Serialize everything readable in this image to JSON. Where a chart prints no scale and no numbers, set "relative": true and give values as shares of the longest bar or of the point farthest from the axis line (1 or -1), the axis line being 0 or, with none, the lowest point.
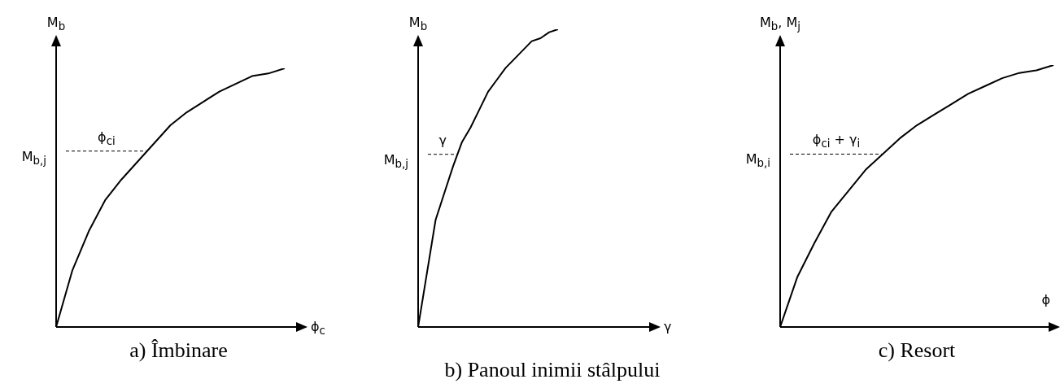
{
  "chart_data": [
    {
      "type": "line",
      "title": "a) Îmbinare",
      "xlabel": "ϕ$_{c}$",
      "ylabel": "M$_{b}$",
      "relative": true,
      "categories": [
        null,
        null,
        null,
        null,
        null,
        null,
        null,
        null,
        null,
        null,
        null,
        null,
        null,
        null,
        null,
        null
      ],
      "values": [
        0,
        0.22,
        0.37,
        0.49,
        0.57,
        0.64,
        0.71,
        0.78,
        0.83,
        0.87,
        0.91,
        0.94,
        0.97,
        0.98,
        1,
        null
      ],
      "color": "#000000",
      "ref_lines": [
        {
          "axis": "y",
          "value": 0.68,
          "label": "M$_{b,j}$",
          "color": "#000000",
          "line_style": "dashed"
        }
      ],
      "annotations": [
        "ϕ$_{ci}$"
      ]
    },
    {
      "type": "line",
      "title": "b) Panoul inimii stâlpului",
      "xlabel": "γ",
      "ylabel": "M$_{b}$",
      "relative": true,
      "categories": [
        null,
        null,
        null,
        null,
        null,
        null,
        null,
        null,
        null,
        null,
        null,
        null,
        null,
        null,
        null,
        null,
        null,
        null,
        null,
        null,
        null,
        null,
        null,
        null,
        null,
        null,
        null,
        null
      ],
      "values": [
        0,
        0.18,
        0.36,
        0.45,
        0.54,
        0.62,
        0.67,
        0.73,
        0.79,
        0.83,
        0.87,
        0.9,
        0.93,
        0.96,
        0.97,
        0.99,
        1,
        null,
        null,
        null,
        null,
        null,
        null,
        null,
        null,
        null,
        null,
        null
      ],
      "color": "#000000",
      "ref_lines": [
        {
          "axis": "y",
          "value": 0.58,
          "label": "M$_{b,j}$",
          "color": "#000000",
          "line_style": "dashed"
        }
      ],
      "annotations": [
        "γ"
      ]
    },
    {
      "type": "line",
      "title": "c) Resort",
      "xlabel": "ϕ",
      "ylabel": "M$_{b}$, M$_{j}$",
      "relative": true,
      "categories": [
        null,
        null,
        null,
        null,
        null,
        null,
        null,
        null,
        null,
        null,
        null,
        null,
        null,
        null,
        null,
        null,
        null
      ],
      "values": [
        0,
        0.19,
        0.32,
        0.44,
        0.52,
        0.6,
        0.66,
        0.72,
        0.77,
        0.81,
        0.85,
        0.89,
        0.92,
        0.95,
        0.97,
        0.98,
        1
      ],
      "color": "#000000",
      "ref_lines": [
        {
          "axis": "y",
          "value": 0.66,
          "label": "M$_{b,i}$",
          "color": "#000000",
          "line_style": "dashed"
        }
      ],
      "annotations": [
        "ϕ$_{ci}$ + γ$_{i}$"
      ]
    }
  ]
}
